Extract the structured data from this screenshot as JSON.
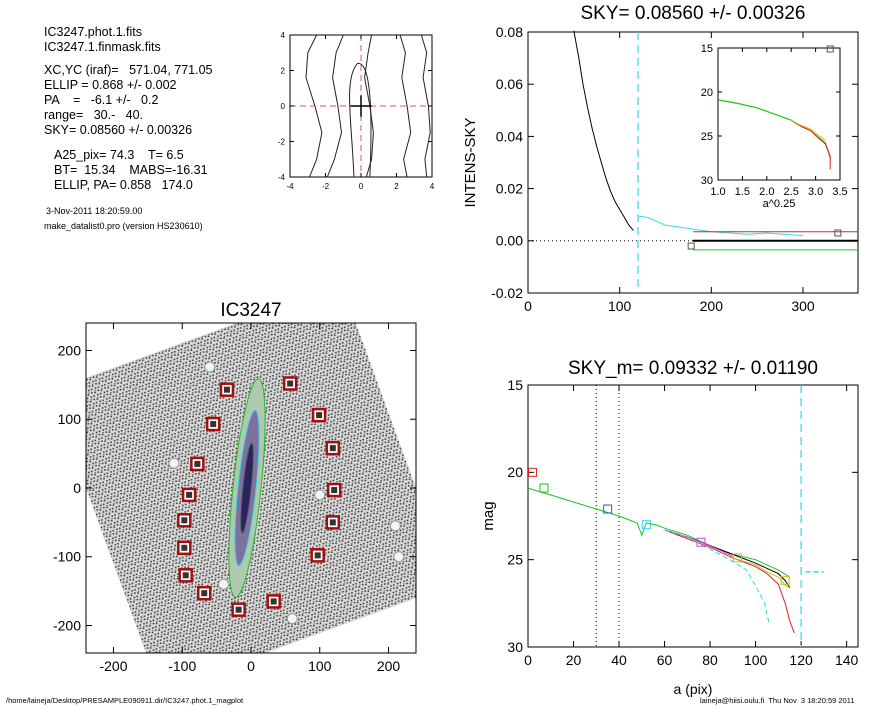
{
  "header": {
    "file1": "IC3247.phot.1.fits",
    "file2": "IC3247.1.finmask.fits",
    "xcyc": "XC,YC (iraf)=   571.04, 771.05",
    "ellip": "ELLIP = 0.868 +/- 0.002",
    "pa": "PA    =   -6.1 +/-   0.2",
    "range": "range=   30.-   40.",
    "sky": "SKY= 0.08560 +/- 0.00326",
    "a25": "A25_pix= 74.3    T= 6.5",
    "bt": "BT=  15.34    MABS=-16.31",
    "ellip_pa": "ELLIP, PA= 0.858   174.0",
    "date": "3-Nov-2011 18:20:59.00",
    "program": "make_datalist0.pro (version HS230610)"
  },
  "footer": {
    "path": "/home/laineja/Desktop/PRESAMPLE090911.dir/IC3247.phot.1_magplot",
    "user": "laineja@hiisi.oulu.fi  Thu Nov  3 18:20:59 2011"
  },
  "colors": {
    "axis": "#000000",
    "dashed_red": "#e85050",
    "cyan": "#30d8e8",
    "green": "#20c020",
    "red": "#e02020",
    "blue": "#2060d0",
    "magenta": "#d040d0",
    "yellow": "#c0c020",
    "box_red": "#a01010",
    "gray": "#555555"
  },
  "chart_data": [
    {
      "id": "center-plot",
      "type": "line",
      "title": "",
      "xlim": [
        -4,
        4
      ],
      "ylim": [
        -4,
        4
      ],
      "xticks": [
        "-4",
        "-2",
        "0",
        "2",
        "4"
      ],
      "yticks": [
        "-4",
        "-2",
        "0",
        "2",
        "4"
      ]
    },
    {
      "id": "sky-plot",
      "type": "line",
      "title": "SKY= 0.08560 +/- 0.00326",
      "xlabel": "",
      "ylabel": "INTENS-SKY",
      "xlim": [
        0,
        360
      ],
      "ylim": [
        -0.02,
        0.08
      ],
      "xticks": [
        "0",
        "100",
        "200",
        "300"
      ],
      "yticks": [
        "-0.02",
        "0.00",
        "0.02",
        "0.04",
        "0.06",
        "0.08"
      ],
      "sky_limit_x": 120,
      "series": [
        {
          "color": "black",
          "x": [
            50,
            55,
            60,
            65,
            70,
            75,
            80,
            85,
            90,
            95,
            100,
            105,
            110,
            115
          ],
          "y": [
            0.0805,
            0.071,
            0.06,
            0.051,
            0.043,
            0.036,
            0.03,
            0.024,
            0.019,
            0.015,
            0.012,
            0.009,
            0.006,
            0.004
          ]
        },
        {
          "color": "cyan",
          "x": [
            120,
            130,
            140,
            150,
            160,
            170,
            180,
            190,
            200,
            220,
            240,
            260,
            280,
            300
          ],
          "y": [
            0.0095,
            0.009,
            0.0075,
            0.006,
            0.0055,
            0.005,
            0.0045,
            0.004,
            0.0035,
            0.003,
            0.0025,
            0.003,
            0.0025,
            0.002
          ]
        },
        {
          "color": "red",
          "x": [
            180,
            360
          ],
          "y": [
            0.0035,
            0.0035
          ]
        },
        {
          "color": "green",
          "x": [
            180,
            360
          ],
          "y": [
            -0.0035,
            -0.0035
          ]
        },
        {
          "color": "black",
          "x": [
            180,
            360
          ],
          "y": [
            0.0,
            0.0
          ]
        }
      ],
      "markers": [
        {
          "x": 178,
          "y": -0.002
        },
        {
          "x": 338,
          "y": 0.003
        }
      ],
      "inset": {
        "xlabel": "a^0.25",
        "xlim": [
          1.0,
          3.5
        ],
        "ylim": [
          15,
          30
        ],
        "xticks": [
          "1.0",
          "1.5",
          "2.0",
          "2.5",
          "3.0",
          "3.5"
        ],
        "yticks": [
          "15",
          "20",
          "25",
          "30"
        ],
        "x": [
          1.0,
          1.4,
          1.8,
          2.2,
          2.5,
          2.7,
          2.9,
          3.05,
          3.2,
          3.3
        ],
        "y": [
          20.9,
          21.3,
          21.8,
          22.6,
          23.2,
          23.9,
          24.4,
          25.1,
          25.8,
          27.5
        ]
      }
    },
    {
      "id": "image-plot",
      "type": "scatter",
      "title": "IC3247",
      "xlim": [
        -240,
        240
      ],
      "ylim": [
        -240,
        240
      ],
      "xticks": [
        "-200",
        "-100",
        "0",
        "100",
        "200"
      ],
      "yticks": [
        "-200",
        "-100",
        "0",
        "100",
        "200"
      ],
      "sky_boxes": [
        {
          "x": -35,
          "y": 143
        },
        {
          "x": 57,
          "y": 152
        },
        {
          "x": -55,
          "y": 93
        },
        {
          "x": 99,
          "y": 106
        },
        {
          "x": -78,
          "y": 35
        },
        {
          "x": 119,
          "y": 58
        },
        {
          "x": -90,
          "y": -10
        },
        {
          "x": 121,
          "y": -3
        },
        {
          "x": -97,
          "y": -47
        },
        {
          "x": 119,
          "y": -50
        },
        {
          "x": -97,
          "y": -87
        },
        {
          "x": 97,
          "y": -98
        },
        {
          "x": -95,
          "y": -127
        },
        {
          "x": -68,
          "y": -153
        },
        {
          "x": -18,
          "y": -177
        },
        {
          "x": 33,
          "y": -165
        }
      ]
    },
    {
      "id": "mag-plot",
      "type": "line",
      "title": "SKY_m=  0.09332 +/- 0.01190",
      "xlabel": "a (pix)",
      "ylabel": "mag",
      "xlim": [
        0,
        145
      ],
      "ylim": [
        15,
        30
      ],
      "xticks": [
        "0",
        "20",
        "40",
        "60",
        "80",
        "100",
        "120",
        "140"
      ],
      "yticks": [
        "15",
        "20",
        "25",
        "30"
      ],
      "range_lines": [
        30,
        40
      ],
      "sky_limit_x": 120,
      "series": [
        {
          "color": "green",
          "x": [
            0,
            10,
            20,
            30,
            40,
            48,
            50,
            52,
            56,
            60,
            70,
            80,
            90,
            100,
            105,
            110,
            115
          ],
          "y": [
            20.9,
            21.3,
            21.7,
            22.1,
            22.5,
            22.9,
            23.6,
            22.9,
            23.0,
            23.2,
            23.6,
            24.2,
            24.7,
            25.0,
            25.3,
            25.6,
            26.0
          ]
        },
        {
          "color": "red",
          "x": [
            60,
            70,
            80,
            90,
            100,
            105,
            110,
            113,
            115,
            117
          ],
          "y": [
            23.3,
            23.8,
            24.3,
            24.9,
            25.4,
            25.8,
            26.4,
            27.5,
            28.5,
            29.2
          ]
        },
        {
          "color": "black",
          "x": [
            60,
            70,
            80,
            90,
            100,
            105,
            110,
            113,
            115
          ],
          "y": [
            23.3,
            23.7,
            24.2,
            24.7,
            25.2,
            25.5,
            25.8,
            26.2,
            26.6
          ]
        },
        {
          "color": "magenta",
          "x": [
            60,
            70,
            76,
            85,
            90
          ],
          "y": [
            23.3,
            23.7,
            24.0,
            24.5,
            24.8
          ]
        },
        {
          "color": "yellow",
          "x": [
            90,
            100,
            105,
            110,
            114
          ],
          "y": [
            24.9,
            25.3,
            25.7,
            26.0,
            26.6
          ]
        },
        {
          "color": "cyan",
          "x": [
            60,
            70,
            80,
            90,
            96,
            100,
            104,
            106
          ],
          "y": [
            23.3,
            23.7,
            24.4,
            25.1,
            25.6,
            26.5,
            27.5,
            28.7
          ]
        }
      ],
      "markers": [
        {
          "x": 2,
          "y": 20.0,
          "color": "red"
        },
        {
          "x": 7,
          "y": 20.9,
          "color": "green"
        },
        {
          "x": 35,
          "y": 22.1,
          "color": "blue"
        },
        {
          "x": 52,
          "y": 23.0,
          "color": "cyan"
        },
        {
          "x": 76,
          "y": 24.0,
          "color": "magenta"
        },
        {
          "x": 92,
          "y": 24.9,
          "color": "yellow"
        },
        {
          "x": 113,
          "y": 26.2,
          "color": "yellow"
        }
      ],
      "sky_mag_segment": {
        "x": [
          122,
          130
        ],
        "y": [
          25.7,
          25.7
        ]
      }
    }
  ]
}
